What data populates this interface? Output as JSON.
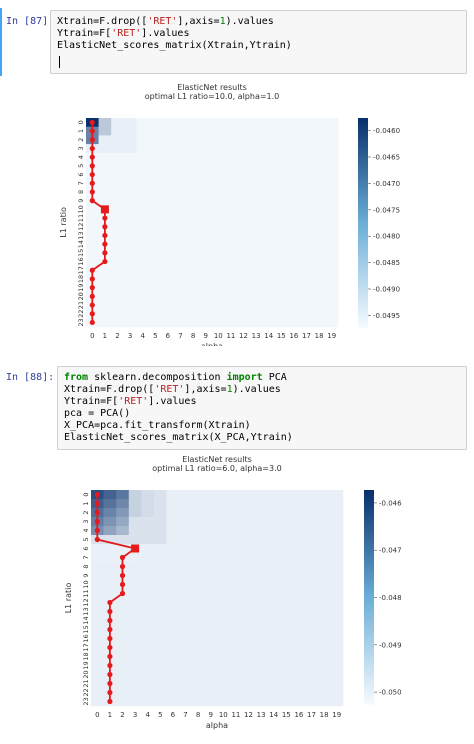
{
  "cells": [
    {
      "prompt": "In [87]:",
      "code_lines": [
        [
          {
            "t": "Xtrain=F.drop(["
          },
          {
            "t": "'RET'",
            "c": "str"
          },
          {
            "t": "],axis="
          },
          {
            "t": "1",
            "c": "num"
          },
          {
            "t": ").values"
          }
        ],
        [
          {
            "t": "Ytrain=F["
          },
          {
            "t": "'RET'",
            "c": "str"
          },
          {
            "t": "].values"
          }
        ],
        [
          {
            "t": "ElasticNet_scores_matrix(Xtrain,Ytrain)"
          }
        ]
      ]
    },
    {
      "prompt": "In [88]:",
      "code_lines": [
        [
          {
            "t": "from",
            "c": "kw"
          },
          {
            "t": " sklearn.decomposition "
          },
          {
            "t": "import",
            "c": "kw"
          },
          {
            "t": " PCA"
          }
        ],
        [
          {
            "t": "Xtrain=F.drop(["
          },
          {
            "t": "'RET'",
            "c": "str"
          },
          {
            "t": "],axis="
          },
          {
            "t": "1",
            "c": "num"
          },
          {
            "t": ").values"
          }
        ],
        [
          {
            "t": "Ytrain=F["
          },
          {
            "t": "'RET'",
            "c": "str"
          },
          {
            "t": "].values"
          }
        ],
        [
          {
            "t": "pca = PCA()"
          }
        ],
        [
          {
            "t": "X_PCA=pca.fit_transform(Xtrain)"
          }
        ],
        [
          {
            "t": "ElasticNet_scores_matrix(X_PCA,Ytrain)"
          }
        ]
      ]
    }
  ],
  "chart_data": [
    {
      "type": "heatmap",
      "title": "ElasticNet results",
      "subtitle": "optimal L1 ratio=10.0, alpha=1.0",
      "xlabel": "alpha",
      "ylabel": "L1 ratio",
      "x_ticks": [
        "0",
        "1",
        "2",
        "3",
        "4",
        "5",
        "6",
        "7",
        "8",
        "9",
        "10",
        "11",
        "12",
        "13",
        "14",
        "15",
        "16",
        "17",
        "18",
        "19"
      ],
      "y_ticks": [
        "0",
        "1",
        "2",
        "3",
        "4",
        "5",
        "6",
        "7",
        "8",
        "9",
        "10",
        "11",
        "12",
        "13",
        "14",
        "15",
        "16",
        "17",
        "18",
        "19",
        "20",
        "21",
        "22",
        "23"
      ],
      "colorbar_ticks": [
        "-0.0460",
        "-0.0465",
        "-0.0470",
        "-0.0475",
        "-0.0480",
        "-0.0485",
        "-0.0490",
        "-0.0495"
      ],
      "best_alpha_per_l1": [
        0,
        0,
        0,
        0,
        0,
        0,
        0,
        0,
        0,
        0,
        1,
        1,
        1,
        1,
        1,
        1,
        1,
        0,
        0,
        0,
        0,
        0,
        0,
        0
      ],
      "optimal_marker": {
        "l1_index": 10,
        "alpha_index": 1
      },
      "cmap": {
        "low": "#f7fbff",
        "high": "#08306b"
      }
    },
    {
      "type": "heatmap",
      "title": "ElasticNet results",
      "subtitle": "optimal L1 ratio=6.0, alpha=3.0",
      "xlabel": "alpha",
      "ylabel": "L1 ratio",
      "x_ticks": [
        "0",
        "1",
        "2",
        "3",
        "4",
        "5",
        "6",
        "7",
        "8",
        "9",
        "10",
        "11",
        "12",
        "13",
        "14",
        "15",
        "16",
        "17",
        "18",
        "19"
      ],
      "y_ticks": [
        "0",
        "1",
        "2",
        "3",
        "4",
        "5",
        "6",
        "7",
        "8",
        "9",
        "10",
        "11",
        "12",
        "13",
        "14",
        "15",
        "16",
        "17",
        "18",
        "19",
        "20",
        "21",
        "22",
        "23"
      ],
      "colorbar_ticks": [
        "-0.046",
        "-0.047",
        "-0.048",
        "-0.049",
        "-0.050"
      ],
      "best_alpha_per_l1": [
        0,
        0,
        0,
        0,
        0,
        0,
        3,
        2,
        2,
        2,
        2,
        2,
        1,
        1,
        1,
        1,
        1,
        1,
        1,
        1,
        1,
        1,
        1,
        1
      ],
      "optimal_marker": {
        "l1_index": 6,
        "alpha_index": 3
      },
      "cmap": {
        "low": "#f7fbff",
        "high": "#08306b"
      }
    }
  ]
}
